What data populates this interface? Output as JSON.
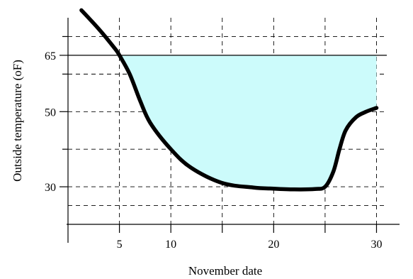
{
  "chart_data": {
    "type": "line",
    "title": "",
    "xlabel": "November date",
    "ylabel": "Outside temperature  (oF)",
    "xlim": [
      0,
      31
    ],
    "ylim": [
      20,
      75
    ],
    "x_ticks": [
      5,
      10,
      20,
      30
    ],
    "y_ticks": [
      30,
      50,
      65
    ],
    "grid": true,
    "reference_line": {
      "y": 65
    },
    "shaded_region": {
      "between": "curve and y=65",
      "x_from": 5,
      "x_to": 30,
      "color": "#ccfbfb"
    },
    "series": [
      {
        "color": "#000000",
        "x": [
          1.3,
          3,
          4.5,
          5,
          6,
          7,
          8,
          10,
          12,
          15,
          18,
          20,
          22,
          24,
          25,
          25.8,
          26.4,
          27,
          28,
          29,
          30
        ],
        "y": [
          77,
          72,
          67,
          65,
          60,
          53,
          47,
          40,
          35,
          31,
          29.8,
          29.5,
          29.3,
          29.4,
          30,
          34,
          40,
          45,
          48.5,
          50,
          51
        ]
      }
    ]
  }
}
